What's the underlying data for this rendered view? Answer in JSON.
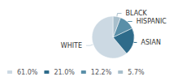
{
  "chart_data": {
    "type": "pie",
    "categories": [
      "WHITE",
      "ASIAN",
      "HISPANIC",
      "BLACK"
    ],
    "values": [
      61.0,
      21.0,
      12.2,
      5.7
    ],
    "value_labels": [
      "61.0%",
      "21.0%",
      "12.2%",
      "5.7%"
    ],
    "colors": [
      "#ccd9e3",
      "#2e6b8a",
      "#5a8fa8",
      "#a8bfcc"
    ],
    "legend": "lower left"
  }
}
